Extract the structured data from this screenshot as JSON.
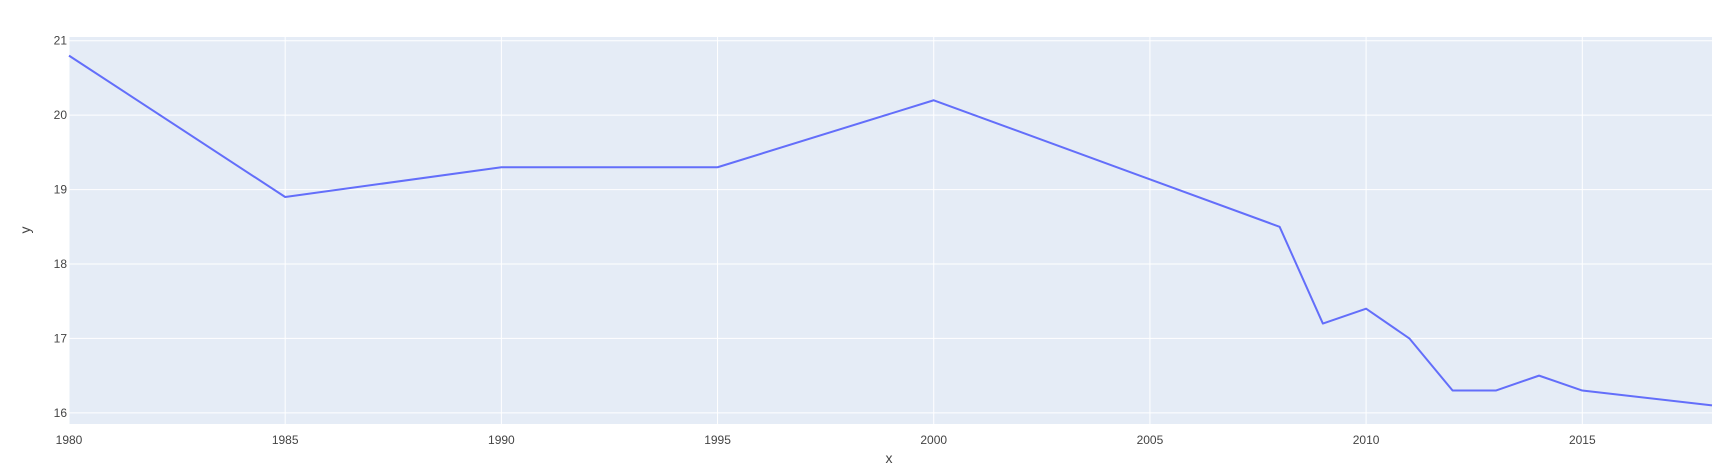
{
  "chart_data": {
    "type": "line",
    "title": "",
    "xlabel": "x",
    "ylabel": "y",
    "xlim": [
      1980,
      2018
    ],
    "ylim": [
      15.85,
      21.05
    ],
    "x_ticks": [
      1980,
      1985,
      1990,
      1995,
      2000,
      2005,
      2010,
      2015
    ],
    "y_ticks": [
      16,
      17,
      18,
      19,
      20,
      21
    ],
    "grid": true,
    "legend": "none",
    "colors": {
      "plot_background": "#E5ECF6",
      "grid": "#FFFFFF",
      "line": "#636EFA"
    },
    "series": [
      {
        "x": [
          1980,
          1985,
          1990,
          1995,
          2000,
          2008,
          2009,
          2010,
          2011,
          2012,
          2013,
          2014,
          2015,
          2018
        ],
        "y": [
          20.8,
          18.9,
          19.3,
          19.3,
          20.2,
          18.5,
          17.2,
          17.4,
          17.0,
          16.3,
          16.3,
          16.5,
          16.3,
          16.1
        ]
      }
    ]
  }
}
